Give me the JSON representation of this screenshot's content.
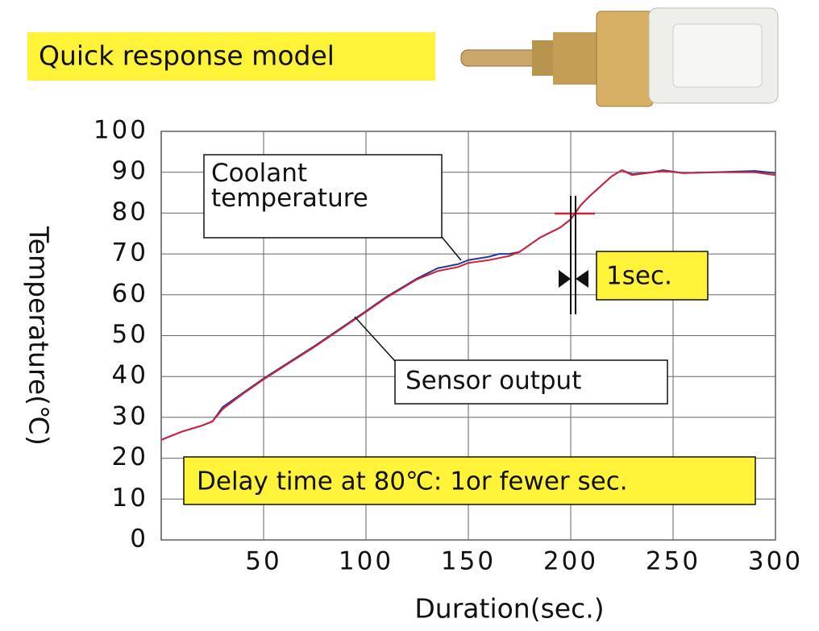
{
  "chart_data": {
    "type": "line",
    "title": "Quick response model",
    "x_label": "Duration(sec.)",
    "y_label": "Temperature(℃)",
    "x": [
      0,
      10,
      20,
      25,
      30,
      40,
      50,
      75,
      100,
      110,
      125,
      135,
      145,
      150,
      160,
      165,
      170,
      175,
      185,
      195,
      200,
      205,
      210,
      220,
      225,
      230,
      240,
      245,
      255,
      270,
      290,
      300
    ],
    "series": [
      {
        "name": "Coolant temperature",
        "color": "#1f3a9a",
        "values": [
          24.5,
          26.5,
          28,
          29,
          32.5,
          36,
          39.5,
          47.5,
          56,
          59.5,
          64,
          66.5,
          67.5,
          68.5,
          69.3,
          70,
          70,
          70.5,
          74,
          76.5,
          78.5,
          82,
          84.5,
          89,
          90.5,
          89.5,
          90,
          90.5,
          89.8,
          90,
          90.3,
          89.8
        ]
      },
      {
        "name": "Sensor output",
        "color": "#d0203a",
        "values": [
          24.5,
          26.5,
          28,
          29,
          32,
          35.8,
          39.3,
          47.3,
          55.8,
          59.3,
          63.8,
          65.8,
          66.8,
          67.8,
          68.5,
          69,
          69.5,
          70.5,
          74,
          76.5,
          78.5,
          82,
          84.5,
          89,
          90.5,
          89.3,
          90,
          90.3,
          89.8,
          90,
          90,
          89.3
        ]
      }
    ],
    "annotations": [
      "1sec.",
      "Delay time at 80℃: 1or fewer sec."
    ],
    "xlim": [
      0,
      300
    ],
    "ylim": [
      0,
      100
    ],
    "xticks": [
      50,
      100,
      150,
      200,
      250,
      300
    ],
    "yticks": [
      0,
      10,
      20,
      30,
      40,
      50,
      60,
      70,
      80,
      90,
      100
    ],
    "grid": true
  }
}
